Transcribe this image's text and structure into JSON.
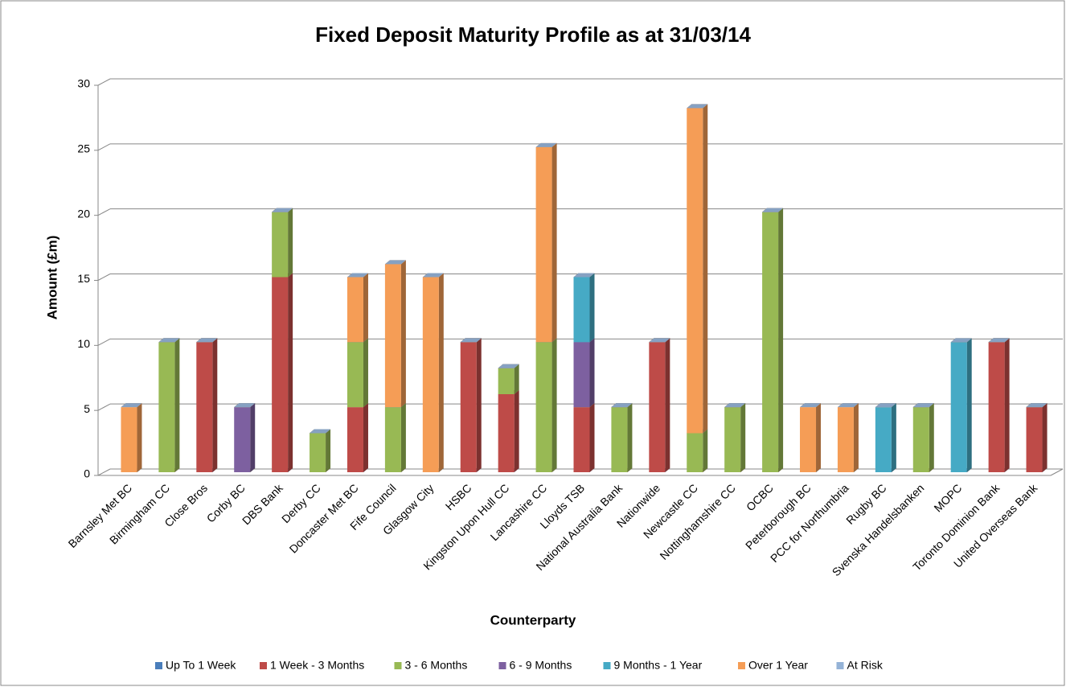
{
  "chart_data": {
    "type": "bar",
    "stacked": true,
    "title": "Fixed Deposit Maturity Profile as at 31/03/14",
    "x_label": "Counterparty",
    "y_label": "Amount (£m)",
    "categories": [
      "Barnsley Met BC",
      "Birmingham CC",
      "Close Bros",
      "Corby BC",
      "DBS Bank",
      "Derby CC",
      "Doncaster Met BC",
      "Fife Council",
      "Glasgow City",
      "HSBC",
      "Kingston Upon Hull CC",
      "Lancashire CC",
      "Lloyds TSB",
      "National Australia Bank",
      "Nationwide",
      "Newcastle CC",
      "Nottinghamshire CC",
      "OCBC",
      "Peterborough BC",
      "PCC for Northumbria",
      "Rugby BC",
      "Svenska Handelsbanken",
      "MOPC",
      "Toronto Dominion Bank",
      "United Overseas Bank"
    ],
    "series": [
      {
        "name": "Up To 1 Week",
        "color": "#4a7ebb",
        "values": [
          0,
          0,
          0,
          0,
          0,
          0,
          0,
          0,
          0,
          0,
          0,
          0,
          0,
          0,
          0,
          0,
          0,
          0,
          0,
          0,
          0,
          0,
          0,
          0,
          0
        ]
      },
      {
        "name": "1 Week - 3 Months",
        "color": "#be4b48",
        "values": [
          0,
          0,
          10,
          0,
          15,
          0,
          5,
          0,
          0,
          10,
          6,
          0,
          5,
          0,
          10,
          0,
          0,
          0,
          0,
          0,
          0,
          0,
          0,
          10,
          5
        ]
      },
      {
        "name": "3 - 6 Months",
        "color": "#98b954",
        "values": [
          0,
          10,
          0,
          0,
          5,
          3,
          5,
          5,
          0,
          0,
          2,
          10,
          0,
          5,
          0,
          3,
          5,
          20,
          0,
          0,
          0,
          5,
          0,
          0,
          0
        ]
      },
      {
        "name": "6 - 9 Months",
        "color": "#7d60a0",
        "values": [
          0,
          0,
          0,
          5,
          0,
          0,
          0,
          0,
          0,
          0,
          0,
          0,
          5,
          0,
          0,
          0,
          0,
          0,
          0,
          0,
          0,
          0,
          0,
          0,
          0
        ]
      },
      {
        "name": "9 Months - 1 Year",
        "color": "#46aac5",
        "values": [
          0,
          0,
          0,
          0,
          0,
          0,
          0,
          0,
          0,
          0,
          0,
          0,
          5,
          0,
          0,
          0,
          0,
          0,
          0,
          0,
          5,
          0,
          10,
          0,
          0
        ]
      },
      {
        "name": "Over 1 Year",
        "color": "#f59d56",
        "values": [
          5,
          0,
          0,
          0,
          0,
          0,
          5,
          11,
          15,
          0,
          0,
          15,
          0,
          0,
          0,
          25,
          0,
          0,
          5,
          5,
          0,
          0,
          0,
          0,
          0
        ]
      },
      {
        "name": "At Risk",
        "color": "#95b3d7",
        "values": [
          0,
          0,
          0,
          0,
          0,
          0,
          0,
          0,
          0,
          0,
          0,
          0,
          0,
          0,
          0,
          0,
          0,
          0,
          0,
          0,
          0,
          0,
          0,
          0,
          0
        ]
      }
    ],
    "ylim": [
      0,
      30
    ],
    "yticks": [
      0,
      5,
      10,
      15,
      20,
      25,
      30
    ],
    "grid": true,
    "legend": "bottom"
  }
}
